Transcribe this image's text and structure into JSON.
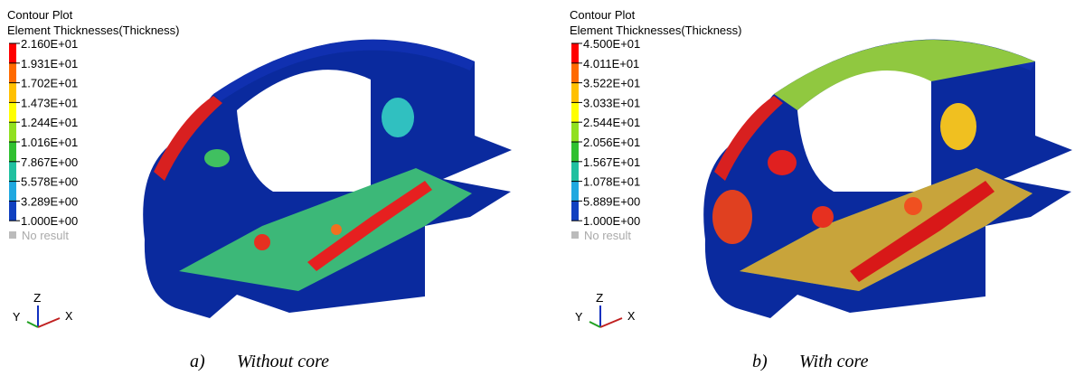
{
  "panels": [
    {
      "title": "Contour Plot",
      "subtitle": "Element Thicknesses(Thickness)",
      "legend": [
        "2.160E+01",
        "1.931E+01",
        "1.702E+01",
        "1.473E+01",
        "1.244E+01",
        "1.016E+01",
        "7.867E+00",
        "5.578E+00",
        "3.289E+00",
        "1.000E+00"
      ],
      "no_result": "No result",
      "axes": {
        "z": "Z",
        "y": "Y",
        "x": "X"
      },
      "caption": {
        "label": "a)",
        "text": "Without core"
      }
    },
    {
      "title": "Contour Plot",
      "subtitle": "Element Thicknesses(Thickness)",
      "legend": [
        "4.500E+01",
        "4.011E+01",
        "3.522E+01",
        "3.033E+01",
        "2.544E+01",
        "2.056E+01",
        "1.567E+01",
        "1.078E+01",
        "5.889E+00",
        "1.000E+00"
      ],
      "no_result": "No result",
      "axes": {
        "z": "Z",
        "y": "Y",
        "x": "X"
      },
      "caption": {
        "label": "b)",
        "text": "With core"
      }
    }
  ]
}
